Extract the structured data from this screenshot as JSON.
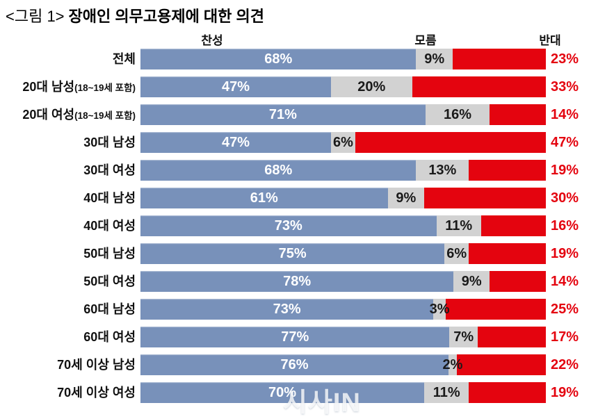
{
  "title": {
    "prefix": "<그림 1>",
    "main": "장애인 의무고용제에 대한 의견"
  },
  "column_headers": {
    "agree": "찬성",
    "unknown": "모름",
    "oppose": "반대"
  },
  "watermark": "시사IN",
  "colors": {
    "agree_bar": "#7891BA",
    "unknown_bar": "#D2D2D2",
    "oppose_bar": "#E4040F",
    "agree_label_text": "#FFFFFF",
    "unknown_label_text": "#1A1A1A",
    "oppose_label_text": "#E4040F"
  },
  "chart_data": {
    "type": "bar",
    "variant": "horizontal-100pct-stacked",
    "title": "장애인 의무고용제에 대한 의견",
    "unit": "%",
    "xlim": [
      0,
      100
    ],
    "grid": false,
    "legend_position": "top-as-column-headers",
    "series_labels": [
      "찬성",
      "모름",
      "반대"
    ],
    "categories": [
      {
        "label": "전체",
        "note": ""
      },
      {
        "label": "20대 남성",
        "note": "(18~19세 포함)"
      },
      {
        "label": "20대 여성",
        "note": "(18~19세 포함)"
      },
      {
        "label": "30대 남성",
        "note": ""
      },
      {
        "label": "30대 여성",
        "note": ""
      },
      {
        "label": "40대 남성",
        "note": ""
      },
      {
        "label": "40대 여성",
        "note": ""
      },
      {
        "label": "50대 남성",
        "note": ""
      },
      {
        "label": "50대 여성",
        "note": ""
      },
      {
        "label": "60대 남성",
        "note": ""
      },
      {
        "label": "60대 여성",
        "note": ""
      },
      {
        "label": "70세 이상 남성",
        "note": ""
      },
      {
        "label": "70세 이상 여성",
        "note": ""
      }
    ],
    "series": [
      {
        "name": "찬성",
        "values": [
          68,
          47,
          71,
          47,
          68,
          61,
          73,
          75,
          78,
          73,
          77,
          76,
          70
        ]
      },
      {
        "name": "모름",
        "values": [
          9,
          20,
          16,
          6,
          13,
          9,
          11,
          6,
          9,
          3,
          7,
          2,
          11
        ]
      },
      {
        "name": "반대",
        "values": [
          23,
          33,
          14,
          47,
          19,
          30,
          16,
          19,
          14,
          25,
          17,
          22,
          19
        ]
      }
    ]
  }
}
